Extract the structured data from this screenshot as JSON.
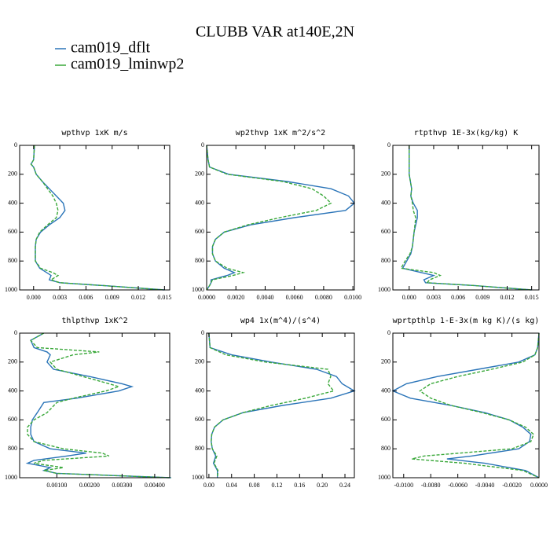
{
  "title": "CLUBB VAR at140E,2N",
  "chart_data": [
    {
      "type": "line",
      "title": "wpthvp  1xK m/s",
      "xlim": [
        -0.0016,
        0.0156
      ],
      "ylim": [
        1000,
        0
      ],
      "xticks": [
        {
          "value": 0,
          "label": "0.000"
        },
        {
          "value": 0.003,
          "label": "0.003"
        },
        {
          "value": 0.006,
          "label": "0.006"
        },
        {
          "value": 0.009,
          "label": "0.009"
        },
        {
          "value": 0.012,
          "label": "0.012"
        },
        {
          "value": 0.015,
          "label": "0.015"
        }
      ],
      "yticks": [
        0,
        200,
        400,
        600,
        800,
        1000
      ],
      "y": [
        0,
        100,
        130,
        150,
        200,
        250,
        300,
        350,
        400,
        450,
        500,
        550,
        600,
        650,
        700,
        800,
        850,
        880,
        900,
        930,
        950,
        970,
        1000
      ],
      "series": [
        {
          "name": "cam019_dflt",
          "color": "#2a74b8",
          "style": "solid",
          "values": [
            0.0001,
            0.0,
            -0.0003,
            0.0,
            0.0003,
            0.001,
            0.0018,
            0.0026,
            0.0034,
            0.0036,
            0.003,
            0.0018,
            0.0008,
            0.0003,
            0.0002,
            0.0002,
            0.0007,
            0.0015,
            0.002,
            0.0018,
            0.003,
            0.008,
            0.015
          ]
        },
        {
          "name": "cam019_lminwp2",
          "color": "#3aa83a",
          "style": "dashed",
          "values": [
            0.0001,
            0.0,
            -0.0003,
            0.0,
            0.0003,
            0.001,
            0.0016,
            0.0022,
            0.0026,
            0.0028,
            0.0026,
            0.0016,
            0.0007,
            0.0003,
            0.0002,
            0.0002,
            0.0008,
            0.0022,
            0.0028,
            0.002,
            0.003,
            0.008,
            0.015
          ]
        }
      ]
    },
    {
      "type": "line",
      "title": "wp2thvp  1xK m^2/s^2",
      "xlim": [
        0,
        0.0101
      ],
      "ylim": [
        1000,
        0
      ],
      "xticks": [
        {
          "value": 0,
          "label": "0.0000"
        },
        {
          "value": 0.002,
          "label": "0.0020"
        },
        {
          "value": 0.004,
          "label": "0.0040"
        },
        {
          "value": 0.006,
          "label": "0.0060"
        },
        {
          "value": 0.008,
          "label": "0.0080"
        },
        {
          "value": 0.01,
          "label": "0.0100"
        }
      ],
      "yticks": [
        0,
        200,
        400,
        600,
        800,
        1000
      ],
      "y": [
        0,
        100,
        150,
        200,
        250,
        300,
        350,
        400,
        450,
        500,
        550,
        600,
        650,
        700,
        750,
        800,
        850,
        880,
        900,
        930,
        950,
        970,
        1000
      ],
      "series": [
        {
          "name": "cam019_dflt",
          "color": "#2a74b8",
          "style": "solid",
          "values": [
            0,
            0.0001,
            0.0002,
            0.0015,
            0.0055,
            0.0085,
            0.0097,
            0.0101,
            0.0095,
            0.006,
            0.003,
            0.0012,
            0.0006,
            0.0004,
            0.0004,
            0.0006,
            0.0012,
            0.0019,
            0.0014,
            0.0003,
            0.0003,
            0.0002,
            0
          ]
        },
        {
          "name": "cam019_lminwp2",
          "color": "#3aa83a",
          "style": "dashed",
          "values": [
            0,
            0.0001,
            0.0002,
            0.0014,
            0.0052,
            0.0072,
            0.008,
            0.0085,
            0.0075,
            0.005,
            0.0028,
            0.0012,
            0.0006,
            0.0004,
            0.0004,
            0.0006,
            0.0014,
            0.0025,
            0.0018,
            0.0004,
            0.0003,
            0.0002,
            0
          ]
        }
      ]
    },
    {
      "type": "line",
      "title": "rtpthvp  1E-3x(kg/kg) K",
      "xlim": [
        -0.002,
        0.0159
      ],
      "ylim": [
        1000,
        0
      ],
      "xticks": [
        {
          "value": 0,
          "label": "0.000"
        },
        {
          "value": 0.003,
          "label": "0.003"
        },
        {
          "value": 0.006,
          "label": "0.006"
        },
        {
          "value": 0.009,
          "label": "0.009"
        },
        {
          "value": 0.012,
          "label": "0.012"
        },
        {
          "value": 0.015,
          "label": "0.015"
        }
      ],
      "yticks": [
        0,
        200,
        400,
        600,
        800,
        1000
      ],
      "y": [
        0,
        100,
        200,
        300,
        350,
        400,
        450,
        500,
        550,
        600,
        650,
        700,
        750,
        800,
        850,
        880,
        900,
        930,
        950,
        970,
        1000
      ],
      "series": [
        {
          "name": "cam019_dflt",
          "color": "#2a74b8",
          "style": "solid",
          "values": [
            0,
            0,
            0,
            0.0003,
            0.0002,
            0.0005,
            0.001,
            0.001,
            0.0008,
            0.0006,
            0.0005,
            0.0004,
            0.0002,
            -0.0003,
            -0.0008,
            0.0015,
            0.003,
            0.0018,
            0.002,
            0.008,
            0.015
          ]
        },
        {
          "name": "cam019_lminwp2",
          "color": "#3aa83a",
          "style": "dashed",
          "values": [
            0,
            0,
            0,
            0.0003,
            0.0002,
            0.0004,
            0.0005,
            0.0008,
            0.0007,
            0.0006,
            0.0005,
            0.0004,
            0.0001,
            -0.0005,
            -0.001,
            0.003,
            0.0038,
            0.0025,
            0.0022,
            0.008,
            0.015
          ]
        }
      ]
    },
    {
      "type": "line",
      "title": "thlpthvp  1xK^2",
      "xlim": [
        -0.00014,
        0.00446
      ],
      "ylim": [
        1000,
        0
      ],
      "xticks": [
        {
          "value": 0.001,
          "label": "0.00100"
        },
        {
          "value": 0.002,
          "label": "0.00200"
        },
        {
          "value": 0.003,
          "label": "0.00300"
        },
        {
          "value": 0.004,
          "label": "0.00400"
        }
      ],
      "yticks": [
        0,
        200,
        400,
        600,
        800,
        1000
      ],
      "y": [
        0,
        50,
        100,
        130,
        150,
        200,
        250,
        300,
        350,
        370,
        400,
        450,
        480,
        550,
        600,
        650,
        700,
        750,
        800,
        830,
        850,
        880,
        900,
        930,
        950,
        970,
        1000
      ],
      "series": [
        {
          "name": "cam019_dflt",
          "color": "#2a74b8",
          "style": "solid",
          "values": [
            0.0006,
            0.0002,
            0.0003,
            0.0007,
            0.0008,
            0.0007,
            0.0009,
            0.002,
            0.003,
            0.0033,
            0.0029,
            0.0016,
            0.0006,
            0.0004,
            0.00025,
            0.0002,
            0.0002,
            0.0003,
            0.0008,
            0.0019,
            0.0013,
            0.0003,
            0.0001,
            0.0008,
            0.0006,
            0.001,
            0.0045
          ]
        },
        {
          "name": "cam019_lminwp2",
          "color": "#3aa83a",
          "style": "dashed",
          "values": [
            0.0006,
            0.0002,
            0.0004,
            0.0023,
            0.0015,
            0.0008,
            0.001,
            0.0018,
            0.0026,
            0.0029,
            0.0025,
            0.0015,
            0.001,
            0.0007,
            0.0003,
            0.0001,
            0.0001,
            0.0003,
            0.0012,
            0.0024,
            0.0026,
            0.0006,
            0.0003,
            0.0012,
            0.0006,
            0.001,
            0.0045
          ]
        }
      ]
    },
    {
      "type": "line",
      "title": "wp4  1x(m^4)/(s^4)",
      "xlim": [
        -0.004,
        0.2566
      ],
      "ylim": [
        1000,
        0
      ],
      "xticks": [
        {
          "value": 0,
          "label": "0.00"
        },
        {
          "value": 0.04,
          "label": "0.04"
        },
        {
          "value": 0.08,
          "label": "0.08"
        },
        {
          "value": 0.12,
          "label": "0.12"
        },
        {
          "value": 0.16,
          "label": "0.16"
        },
        {
          "value": 0.2,
          "label": "0.20"
        },
        {
          "value": 0.24,
          "label": "0.24"
        }
      ],
      "yticks": [
        0,
        200,
        400,
        600,
        800,
        1000
      ],
      "y": [
        0,
        100,
        150,
        200,
        250,
        300,
        350,
        400,
        450,
        500,
        550,
        600,
        650,
        700,
        750,
        800,
        850,
        900,
        950,
        1000
      ],
      "series": [
        {
          "name": "cam019_dflt",
          "color": "#2a74b8",
          "style": "solid",
          "values": [
            0,
            0.002,
            0.04,
            0.11,
            0.19,
            0.225,
            0.235,
            0.2566,
            0.215,
            0.13,
            0.06,
            0.025,
            0.01,
            0.005,
            0.004,
            0.006,
            0.012,
            0.008,
            0.015,
            0.015
          ]
        },
        {
          "name": "cam019_lminwp2",
          "color": "#3aa83a",
          "style": "dashed",
          "values": [
            0,
            0.002,
            0.03,
            0.1,
            0.21,
            0.215,
            0.21,
            0.22,
            0.17,
            0.11,
            0.06,
            0.025,
            0.01,
            0.005,
            0.004,
            0.006,
            0.014,
            0.009,
            0.016,
            0.015
          ]
        }
      ]
    },
    {
      "type": "line",
      "title": "wprtpthlp  1-E-3x(m kg K)/(s kg)",
      "xlim": [
        -0.0108,
        0
      ],
      "ylim": [
        1000,
        0
      ],
      "xticks": [
        {
          "value": -0.01,
          "label": "-0.0100"
        },
        {
          "value": -0.008,
          "label": "-0.0080"
        },
        {
          "value": -0.006,
          "label": "-0.0060"
        },
        {
          "value": -0.004,
          "label": "-0.0040"
        },
        {
          "value": -0.002,
          "label": "-0.0020"
        },
        {
          "value": 0,
          "label": "0.0000"
        }
      ],
      "yticks": [
        0,
        200,
        400,
        600,
        800,
        1000
      ],
      "y": [
        0,
        100,
        150,
        200,
        250,
        300,
        350,
        400,
        450,
        500,
        550,
        600,
        650,
        700,
        750,
        800,
        850,
        870,
        900,
        950,
        1000
      ],
      "series": [
        {
          "name": "cam019_dflt",
          "color": "#2a74b8",
          "style": "solid",
          "values": [
            0,
            -0.0001,
            -0.0003,
            -0.0015,
            -0.0045,
            -0.0075,
            -0.0098,
            -0.0108,
            -0.0095,
            -0.0065,
            -0.004,
            -0.0022,
            -0.0012,
            -0.0006,
            -0.0007,
            -0.0015,
            -0.005,
            -0.0068,
            -0.004,
            -0.001,
            0
          ]
        },
        {
          "name": "cam019_lminwp2",
          "color": "#3aa83a",
          "style": "dashed",
          "values": [
            0,
            -0.0001,
            -0.0003,
            -0.0012,
            -0.0035,
            -0.006,
            -0.008,
            -0.0088,
            -0.008,
            -0.0065,
            -0.0042,
            -0.0022,
            -0.001,
            -0.0004,
            -0.0006,
            -0.002,
            -0.0085,
            -0.0094,
            -0.0055,
            -0.0012,
            0
          ]
        }
      ]
    }
  ]
}
